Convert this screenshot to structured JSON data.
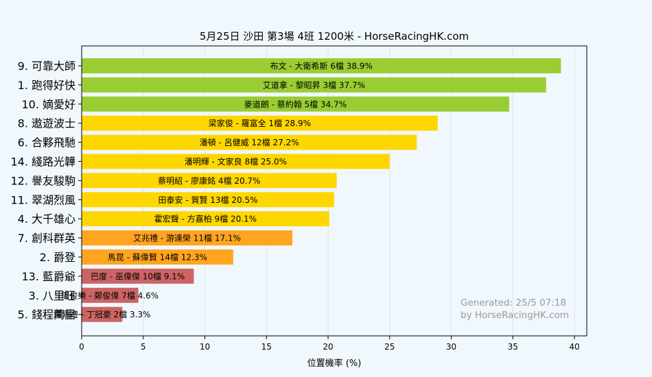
{
  "chart_data": {
    "type": "bar",
    "orientation": "horizontal",
    "title": "5月25日  沙田  第3場  4班  1200米 - HorseRacingHK.com",
    "xlabel": "位置機率 (%)",
    "xlim": [
      0,
      41
    ],
    "xticks": [
      0,
      5,
      10,
      15,
      20,
      25,
      30,
      35,
      40
    ],
    "grid": true,
    "bars": [
      {
        "category": "9. 可靠大師",
        "value": 38.9,
        "label": "布文 - 大衛希斯 6檔  38.9%",
        "color": "#9acd32"
      },
      {
        "category": "1. 跑得好快",
        "value": 37.7,
        "label": "艾道拿 - 黎昭昇 3檔  37.7%",
        "color": "#9acd32"
      },
      {
        "category": "10. 嫡愛好",
        "value": 34.7,
        "label": "麥道朗 - 蔡約翰 5檔  34.7%",
        "color": "#9acd32"
      },
      {
        "category": "8. 遨遊波士",
        "value": 28.9,
        "label": "梁家俊 - 羅富全 1檔  28.9%",
        "color": "#ffd700"
      },
      {
        "category": "6. 合夥飛馳",
        "value": 27.2,
        "label": "潘頓 - 呂健威 12檔  27.2%",
        "color": "#ffd700"
      },
      {
        "category": "14. 綫路光韡",
        "value": 25.0,
        "label": "潘明輝 - 文家良 8檔  25.0%",
        "color": "#ffd700"
      },
      {
        "category": "12. 譽友駿駒",
        "value": 20.7,
        "label": "蔡明紹 - 廖康銘 4檔  20.7%",
        "color": "#ffd700"
      },
      {
        "category": "11. 翠湖烈風",
        "value": 20.5,
        "label": "田泰安 - 賀賢 13檔  20.5%",
        "color": "#ffd700"
      },
      {
        "category": "4. 大千雄心",
        "value": 20.1,
        "label": "霍宏聲 - 方嘉柏 9檔  20.1%",
        "color": "#ffd700"
      },
      {
        "category": "7. 創科群英",
        "value": 17.1,
        "label": "艾兆禮 - 游達榮 11檔  17.1%",
        "color": "#ffa520"
      },
      {
        "category": "2. 爵登",
        "value": 12.3,
        "label": "馬昆 - 蘇偉賢 14檔  12.3%",
        "color": "#ffa520"
      },
      {
        "category": "13. 藍爵爺",
        "value": 9.1,
        "label": "巴度 - 巫偉傑 10檔  9.1%",
        "color": "#cd6464"
      },
      {
        "category": "3. 八里旺",
        "value": 4.6,
        "label": "周俊樂 - 鄭俊偉 7檔  4.6%",
        "color": "#cd6464"
      },
      {
        "category": "5. 錢程萬里",
        "value": 3.3,
        "label": "鍾易禮 - 丁冠豪 2檔  3.3%",
        "color": "#cd6464"
      }
    ],
    "annotation": {
      "line1": "Generated: 25/5 07:18",
      "line2": "by HorseRacingHK.com"
    }
  }
}
